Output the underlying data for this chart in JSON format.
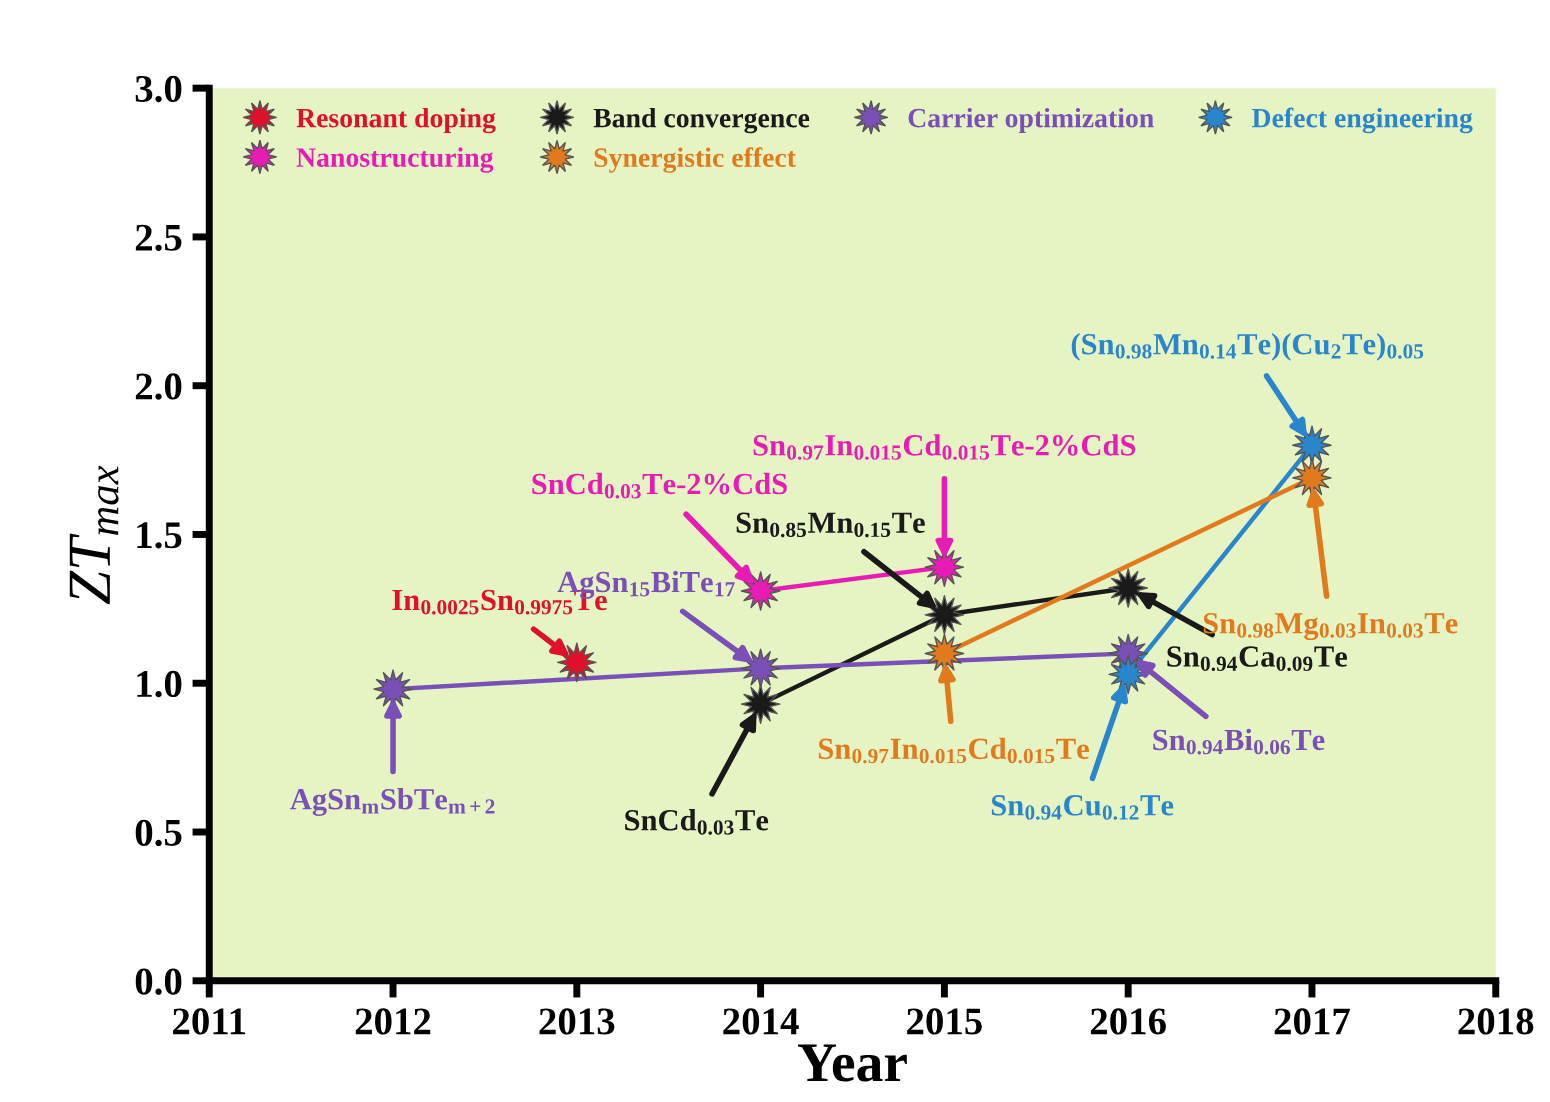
{
  "chart_data": {
    "type": "line",
    "xlabel": "Year",
    "ylabel": "ZT$_{max}$",
    "xlim": [
      2011,
      2018
    ],
    "xticks": [
      2011,
      2012,
      2013,
      2014,
      2015,
      2016,
      2017,
      2018
    ],
    "ylim": [
      0,
      3
    ],
    "yticks": [
      {
        "value": 0,
        "label": "0.0"
      },
      {
        "value": 0.5,
        "label": "0.5"
      },
      {
        "value": 1,
        "label": "1.0"
      },
      {
        "value": 1.5,
        "label": "1.5"
      },
      {
        "value": 2,
        "label": "2.0"
      },
      {
        "value": 2.5,
        "label": "2.5"
      },
      {
        "value": 3,
        "label": "3.0"
      }
    ],
    "grid": false,
    "legend": "top",
    "marker": "star",
    "line_style": "solid",
    "series": [
      {
        "name": "Resonant doping",
        "color": "#e0102a",
        "x": [
          2013
        ],
        "values": [
          1.07
        ]
      },
      {
        "name": "Band convergence",
        "color": "#1a1a1a",
        "x": [
          2014,
          2015,
          2016
        ],
        "values": [
          0.93,
          1.23,
          1.32
        ]
      },
      {
        "name": "Carrier optimization",
        "color": "#7b4fb8",
        "x": [
          2012,
          2014,
          2016
        ],
        "values": [
          0.98,
          1.05,
          1.1
        ]
      },
      {
        "name": "Defect engineering",
        "color": "#2a86cc",
        "x": [
          2016,
          2017
        ],
        "values": [
          1.03,
          1.8
        ]
      },
      {
        "name": "Nanostructuring",
        "color": "#e81cb4",
        "x": [
          2014,
          2015
        ],
        "values": [
          1.31,
          1.39
        ]
      },
      {
        "name": "Synergistic effect",
        "color": "#e07a1c",
        "x": [
          2015,
          2017
        ],
        "values": [
          1.1,
          1.69
        ]
      }
    ],
    "annotations": [
      {
        "text": "AgSn$_{m}$SbTe$_{m+2}$",
        "x": 2012,
        "y": 0.98
      },
      {
        "text": "In$_{0.0025}$Sn$_{0.9975}$Te",
        "x": 2013,
        "y": 1.07
      },
      {
        "text": "AgSn$_{15}$BiTe$_{17}$",
        "x": 2014,
        "y": 1.05
      },
      {
        "text": "SnCd$_{0.03}$Te",
        "x": 2014,
        "y": 0.93
      },
      {
        "text": "SnCd$_{0.03}$Te-2%CdS",
        "x": 2014,
        "y": 1.31
      },
      {
        "text": "Sn$_{0.97}$In$_{0.015}$Cd$_{0.015}$Te-2%CdS",
        "x": 2015,
        "y": 1.39
      },
      {
        "text": "Sn$_{0.85}$Mn$_{0.15}$Te",
        "x": 2015,
        "y": 1.23
      },
      {
        "text": "Sn$_{0.97}$In$_{0.015}$Cd$_{0.015}$Te",
        "x": 2015,
        "y": 1.1
      },
      {
        "text": "Sn$_{0.94}$Ca$_{0.09}$Te",
        "x": 2016,
        "y": 1.32
      },
      {
        "text": "Sn$_{0.94}$Cu$_{0.12}$Te",
        "x": 2016,
        "y": 1.03
      },
      {
        "text": "Sn$_{0.94}$Bi$_{0.06}$Te",
        "x": 2016,
        "y": 1.1
      },
      {
        "text": "(Sn$_{0.98}$Mn$_{0.14}$Te)(Cu$_{2}$Te)$_{0.05}$",
        "x": 2017,
        "y": 1.8
      },
      {
        "text": "Sn$_{0.98}$Mg$_{0.03}$In$_{0.03}$Te",
        "x": 2017,
        "y": 1.69
      }
    ]
  }
}
